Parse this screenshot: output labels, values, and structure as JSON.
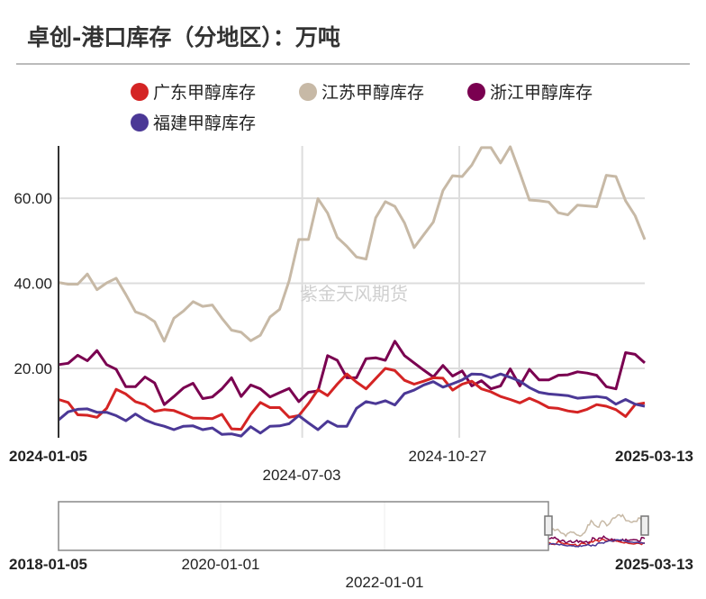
{
  "title": "卓创-港口库存（分地区）：万吨",
  "watermark": "紫金天风期货",
  "legend": [
    {
      "name": "广东甲醇库存",
      "color": "#d42424"
    },
    {
      "name": "江苏甲醇库存",
      "color": "#c7b9a6"
    },
    {
      "name": "浙江甲醇库存",
      "color": "#7a0050"
    },
    {
      "name": "福建甲醇库存",
      "color": "#4b3896"
    }
  ],
  "chart_data": {
    "type": "line",
    "title": "卓创-港口库存（分地区）：万吨",
    "x_range": [
      "2024-01-05",
      "2025-03-13"
    ],
    "x_tick_labels": [
      "2024-01-05",
      "2024-07-03",
      "2024-10-27",
      "2025-03-13"
    ],
    "y_tick_labels": [
      "20.00",
      "40.00",
      "60.00"
    ],
    "ylim": [
      3.7,
      72.3
    ],
    "grid": true,
    "legend_position": "top",
    "series": [
      {
        "name": "广东甲醇库存",
        "color": "#d42424",
        "values": [
          12.7,
          12.0,
          9.1,
          9.0,
          8.5,
          10.6,
          15.1,
          14.0,
          12.2,
          11.5,
          9.9,
          10.3,
          10.1,
          9.2,
          8.3,
          8.3,
          8.2,
          9.2,
          5.8,
          5.7,
          9.2,
          12.0,
          10.8,
          10.8,
          8.5,
          8.9,
          11.7,
          15.0,
          13.6,
          16.3,
          18.7,
          16.8,
          15.2,
          17.6,
          20.0,
          19.5,
          17.2,
          16.3,
          17.0,
          17.8,
          17.7,
          14.9,
          16.3,
          17.0,
          15.2,
          14.5,
          13.4,
          12.7,
          11.9,
          13.0,
          12.0,
          10.8,
          10.6,
          10.0,
          9.7,
          10.4,
          11.5,
          11.1,
          10.3,
          8.7,
          11.5,
          11.9
        ]
      },
      {
        "name": "江苏甲醇库存",
        "color": "#c7b9a6",
        "values": [
          40.2,
          39.8,
          39.8,
          42.2,
          38.5,
          40.1,
          41.2,
          37.4,
          33.3,
          32.5,
          31.0,
          26.4,
          31.8,
          33.5,
          35.7,
          34.6,
          34.9,
          31.8,
          29.0,
          28.5,
          26.5,
          27.8,
          32.1,
          33.9,
          40.6,
          50.3,
          50.3,
          59.9,
          56.5,
          50.8,
          48.7,
          46.2,
          45.7,
          55.4,
          59.2,
          58.1,
          54.2,
          48.4,
          51.4,
          54.4,
          61.8,
          65.3,
          65.1,
          67.8,
          71.9,
          71.9,
          68.3,
          72.1,
          66.0,
          59.6,
          59.4,
          59.1,
          56.6,
          56.1,
          58.4,
          58.2,
          58.0,
          65.4,
          65.1,
          59.4,
          55.9,
          50.3
        ]
      },
      {
        "name": "浙江甲醇库存",
        "color": "#7a0050",
        "values": [
          20.9,
          21.2,
          23.1,
          21.8,
          24.2,
          20.9,
          19.8,
          15.7,
          15.7,
          18.0,
          16.6,
          11.5,
          13.4,
          15.4,
          16.5,
          12.9,
          13.3,
          15.2,
          17.8,
          13.4,
          16.1,
          15.2,
          13.3,
          14.3,
          15.3,
          12.2,
          14.4,
          14.7,
          23.0,
          21.9,
          17.8,
          17.8,
          22.3,
          22.5,
          21.9,
          26.4,
          23.0,
          21.3,
          19.6,
          18.0,
          20.7,
          18.2,
          19.4,
          15.9,
          17.1,
          15.2,
          15.9,
          19.9,
          15.9,
          19.8,
          17.3,
          17.3,
          18.4,
          18.5,
          19.2,
          18.9,
          18.4,
          15.7,
          15.2,
          23.7,
          23.3,
          21.3
        ]
      },
      {
        "name": "福建甲醇库存",
        "color": "#4b3896",
        "values": [
          7.9,
          9.8,
          10.4,
          10.5,
          9.7,
          9.7,
          8.9,
          7.7,
          9.3,
          7.9,
          7.0,
          6.4,
          5.6,
          6.4,
          6.5,
          5.6,
          6.0,
          4.5,
          4.6,
          4.1,
          6.3,
          4.8,
          6.4,
          6.5,
          7.0,
          8.9,
          7.2,
          5.6,
          7.6,
          6.4,
          6.4,
          10.6,
          12.2,
          11.7,
          12.4,
          11.4,
          14.1,
          14.9,
          16.1,
          16.9,
          15.6,
          16.4,
          17.3,
          18.7,
          18.6,
          17.8,
          18.7,
          17.9,
          17.0,
          15.5,
          14.4,
          14.0,
          13.8,
          13.6,
          13.0,
          13.2,
          13.4,
          13.1,
          11.6,
          12.7,
          11.6,
          11.1
        ]
      }
    ]
  },
  "slider": {
    "labels": [
      "2018-01-05",
      "2020-01-01",
      "2022-01-01",
      "2025-03-13"
    ],
    "selected_range": [
      "2024-01-05",
      "2025-03-13"
    ]
  }
}
